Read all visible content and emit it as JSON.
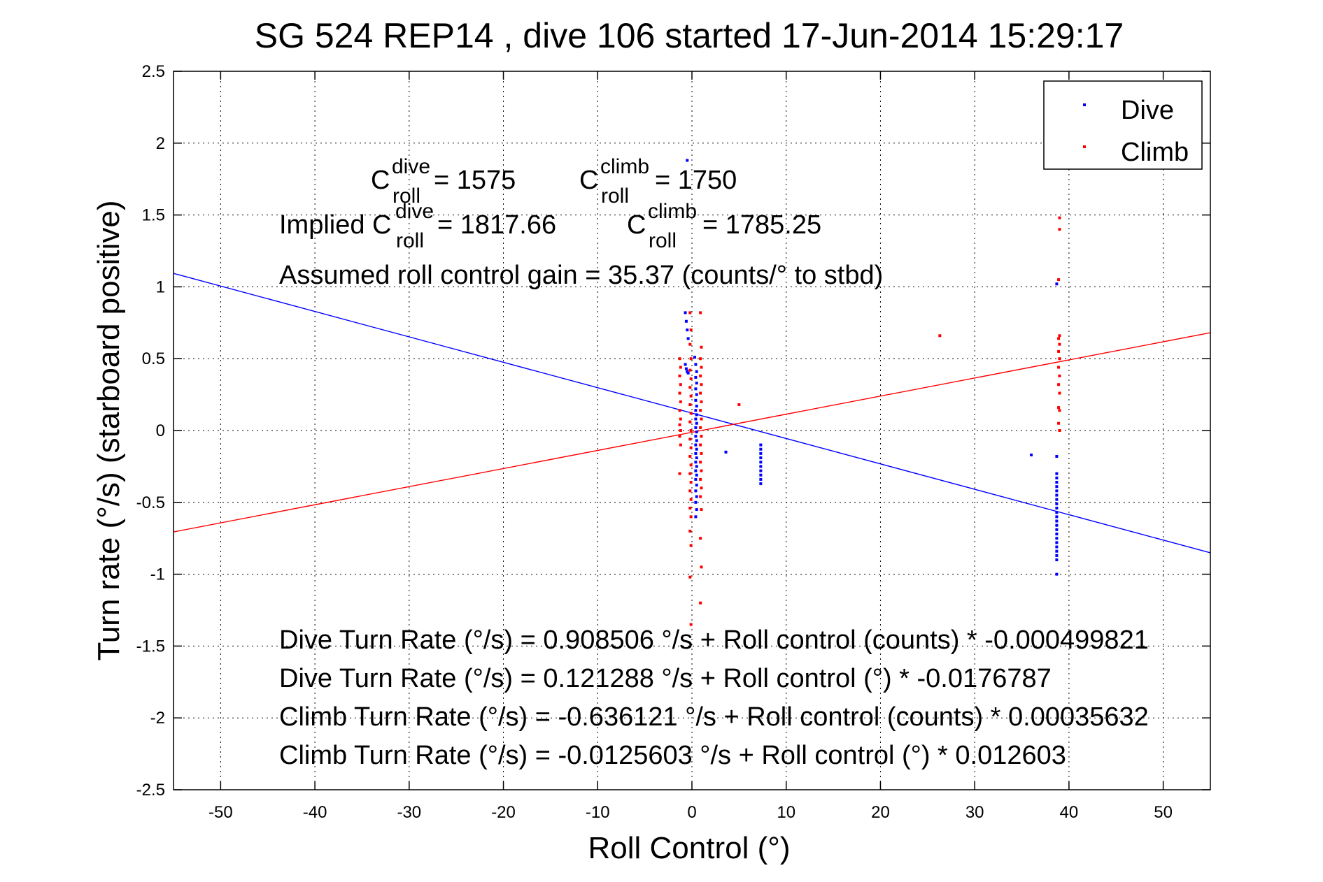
{
  "chart_data": {
    "type": "scatter",
    "title": "SG 524   REP14  , dive 106 started 17-Jun-2014 15:29:17",
    "xlabel": "Roll Control (°)",
    "ylabel": "Turn rate (°/s)  (starboard positive)",
    "xlim": [
      -55,
      55
    ],
    "ylim": [
      -2.5,
      2.5
    ],
    "xticks": [
      -50,
      -40,
      -30,
      -20,
      -10,
      0,
      10,
      20,
      30,
      40,
      50
    ],
    "yticks": [
      2.5,
      2,
      1.5,
      1,
      0.5,
      0,
      -0.5,
      -1,
      -1.5,
      -2,
      -2.5
    ],
    "xtick_labels": [
      "-50",
      "-40",
      "-30",
      "-20",
      "-10",
      "0",
      "10",
      "20",
      "30",
      "40",
      "50"
    ],
    "ytick_labels": [
      "2.5",
      "2",
      "1.5",
      "1",
      "0.5",
      "0",
      "-0.5",
      "-1",
      "-1.5",
      "-2",
      "-2.5"
    ],
    "grid": true,
    "legend": {
      "placement": "top-right",
      "entries": [
        "Dive",
        "Climb"
      ]
    },
    "colors": {
      "dive": "#0000ff",
      "climb": "#ff0000"
    },
    "series": [
      {
        "name": "Dive",
        "color": "#0000ff",
        "points": [
          [
            -0.5,
            1.88
          ],
          [
            -0.7,
            0.82
          ],
          [
            -0.6,
            0.76
          ],
          [
            -0.5,
            0.7
          ],
          [
            -0.4,
            0.64
          ],
          [
            -0.7,
            0.46
          ],
          [
            -0.6,
            0.43
          ],
          [
            -0.5,
            0.41
          ],
          [
            -0.4,
            0.4
          ],
          [
            0.3,
            0.51
          ],
          [
            0.4,
            0.46
          ],
          [
            0.5,
            0.41
          ],
          [
            0.4,
            0.37
          ],
          [
            0.5,
            0.33
          ],
          [
            0.4,
            0.29
          ],
          [
            0.5,
            0.25
          ],
          [
            0.4,
            0.21
          ],
          [
            0.5,
            0.17
          ],
          [
            0.4,
            0.14
          ],
          [
            0.5,
            0.11
          ],
          [
            0.4,
            0.08
          ],
          [
            0.5,
            0.05
          ],
          [
            0.4,
            0.02
          ],
          [
            0.5,
            -0.01
          ],
          [
            0.4,
            -0.04
          ],
          [
            0.5,
            -0.07
          ],
          [
            0.4,
            -0.1
          ],
          [
            0.5,
            -0.13
          ],
          [
            0.4,
            -0.16
          ],
          [
            0.5,
            -0.19
          ],
          [
            0.4,
            -0.22
          ],
          [
            0.5,
            -0.25
          ],
          [
            0.4,
            -0.28
          ],
          [
            0.5,
            -0.31
          ],
          [
            0.4,
            -0.34
          ],
          [
            0.5,
            -0.38
          ],
          [
            0.4,
            -0.42
          ],
          [
            0.5,
            -0.46
          ],
          [
            0.4,
            -0.5
          ],
          [
            0.5,
            -0.55
          ],
          [
            0.4,
            -0.6
          ],
          [
            3.6,
            -0.15
          ],
          [
            7.3,
            -0.1
          ],
          [
            7.3,
            -0.13
          ],
          [
            7.3,
            -0.16
          ],
          [
            7.3,
            -0.19
          ],
          [
            7.3,
            -0.22
          ],
          [
            7.3,
            -0.25
          ],
          [
            7.3,
            -0.28
          ],
          [
            7.3,
            -0.31
          ],
          [
            7.3,
            -0.34
          ],
          [
            7.3,
            -0.37
          ],
          [
            36.0,
            -0.17
          ],
          [
            38.7,
            -0.18
          ],
          [
            38.7,
            -0.3
          ],
          [
            38.7,
            -0.33
          ],
          [
            38.7,
            -0.36
          ],
          [
            38.7,
            -0.39
          ],
          [
            38.7,
            -0.42
          ],
          [
            38.7,
            -0.45
          ],
          [
            38.7,
            -0.48
          ],
          [
            38.7,
            -0.51
          ],
          [
            38.7,
            -0.54
          ],
          [
            38.7,
            -0.57
          ],
          [
            38.7,
            -0.6
          ],
          [
            38.7,
            -0.63
          ],
          [
            38.7,
            -0.66
          ],
          [
            38.7,
            -0.69
          ],
          [
            38.7,
            -0.72
          ],
          [
            38.7,
            -0.75
          ],
          [
            38.7,
            -0.78
          ],
          [
            38.7,
            -0.81
          ],
          [
            38.7,
            -0.84
          ],
          [
            38.7,
            -0.87
          ],
          [
            38.7,
            -0.9
          ],
          [
            38.7,
            -1.0
          ],
          [
            38.7,
            1.02
          ]
        ]
      },
      {
        "name": "Climb",
        "color": "#ff0000",
        "points": [
          [
            -1.3,
            0.5
          ],
          [
            -1.2,
            0.44
          ],
          [
            -1.3,
            0.38
          ],
          [
            -1.2,
            0.32
          ],
          [
            -1.3,
            0.26
          ],
          [
            -1.2,
            0.2
          ],
          [
            -1.3,
            0.14
          ],
          [
            -1.2,
            0.08
          ],
          [
            -1.3,
            0.04
          ],
          [
            -1.2,
            0.0
          ],
          [
            -1.3,
            -0.04
          ],
          [
            -1.2,
            -0.1
          ],
          [
            -1.3,
            -0.3
          ],
          [
            -0.2,
            0.82
          ],
          [
            -0.1,
            0.7
          ],
          [
            -0.2,
            0.6
          ],
          [
            -0.1,
            0.5
          ],
          [
            -0.2,
            0.42
          ],
          [
            -0.1,
            0.36
          ],
          [
            -0.2,
            0.3
          ],
          [
            -0.1,
            0.24
          ],
          [
            -0.2,
            0.18
          ],
          [
            -0.1,
            0.12
          ],
          [
            -0.2,
            0.06
          ],
          [
            -0.1,
            0.0
          ],
          [
            -0.2,
            -0.06
          ],
          [
            -0.1,
            -0.12
          ],
          [
            -0.2,
            -0.18
          ],
          [
            -0.1,
            -0.24
          ],
          [
            -0.2,
            -0.3
          ],
          [
            -0.1,
            -0.36
          ],
          [
            -0.2,
            -0.42
          ],
          [
            -0.1,
            -0.48
          ],
          [
            -0.2,
            -0.54
          ],
          [
            -0.1,
            -0.6
          ],
          [
            -0.2,
            -0.7
          ],
          [
            -0.1,
            -0.8
          ],
          [
            -0.2,
            -1.02
          ],
          [
            -0.1,
            -1.35
          ],
          [
            0.9,
            0.82
          ],
          [
            1.0,
            0.58
          ],
          [
            0.9,
            0.5
          ],
          [
            1.0,
            0.44
          ],
          [
            0.9,
            0.38
          ],
          [
            1.0,
            0.32
          ],
          [
            0.9,
            0.26
          ],
          [
            1.0,
            0.2
          ],
          [
            0.9,
            0.14
          ],
          [
            1.0,
            0.08
          ],
          [
            0.9,
            0.02
          ],
          [
            1.0,
            -0.04
          ],
          [
            0.9,
            -0.1
          ],
          [
            1.0,
            -0.16
          ],
          [
            0.9,
            -0.22
          ],
          [
            1.0,
            -0.28
          ],
          [
            0.9,
            -0.34
          ],
          [
            1.0,
            -0.4
          ],
          [
            0.9,
            -0.46
          ],
          [
            1.0,
            -0.55
          ],
          [
            0.9,
            -0.75
          ],
          [
            1.0,
            -0.95
          ],
          [
            0.9,
            -1.2
          ],
          [
            5.0,
            0.18
          ],
          [
            26.3,
            0.66
          ],
          [
            39.0,
            1.48
          ],
          [
            39.0,
            1.4
          ],
          [
            38.9,
            1.05
          ],
          [
            39.0,
            0.66
          ],
          [
            38.9,
            0.64
          ],
          [
            39.0,
            0.6
          ],
          [
            38.9,
            0.55
          ],
          [
            39.0,
            0.5
          ],
          [
            38.9,
            0.44
          ],
          [
            39.0,
            0.38
          ],
          [
            38.9,
            0.32
          ],
          [
            39.0,
            0.26
          ],
          [
            38.9,
            0.16
          ],
          [
            39.0,
            0.14
          ],
          [
            38.9,
            0.05
          ],
          [
            39.0,
            0.0
          ]
        ]
      }
    ],
    "fit_lines": [
      {
        "series": "Dive",
        "intercept": 0.121288,
        "slope": -0.0176787,
        "color": "#0000ff"
      },
      {
        "series": "Climb",
        "intercept": -0.0125603,
        "slope": 0.012603,
        "color": "#ff0000"
      }
    ],
    "annotations": {
      "c_roll_line": {
        "c1": "C",
        "c1_sup": "dive",
        "c1_sub": "roll",
        "c1_value": " = 1575",
        "c2": "C",
        "c2_sup": "climb",
        "c2_sub": "roll",
        "c2_value": " = 1750"
      },
      "implied_line": {
        "prefix": "Implied C",
        "c1_sup": "dive",
        "c1_sub": "roll",
        "c1_value": " = 1817.66",
        "c2": "C",
        "c2_sup": "climb",
        "c2_sub": "roll",
        "c2_value": " = 1785.25"
      },
      "gain_line": "Assumed roll control gain = 35.37 (counts/° to stbd)",
      "equations": [
        "Dive Turn Rate (°/s) = 0.908506 °/s + Roll control (counts) * -0.000499821",
        "Dive Turn Rate (°/s) = 0.121288 °/s + Roll control (°) * -0.0176787",
        "Climb Turn Rate (°/s) = -0.636121 °/s + Roll control (counts) * 0.00035632",
        "Climb Turn Rate (°/s) = -0.0125603 °/s + Roll control (°) * 0.012603"
      ]
    }
  }
}
